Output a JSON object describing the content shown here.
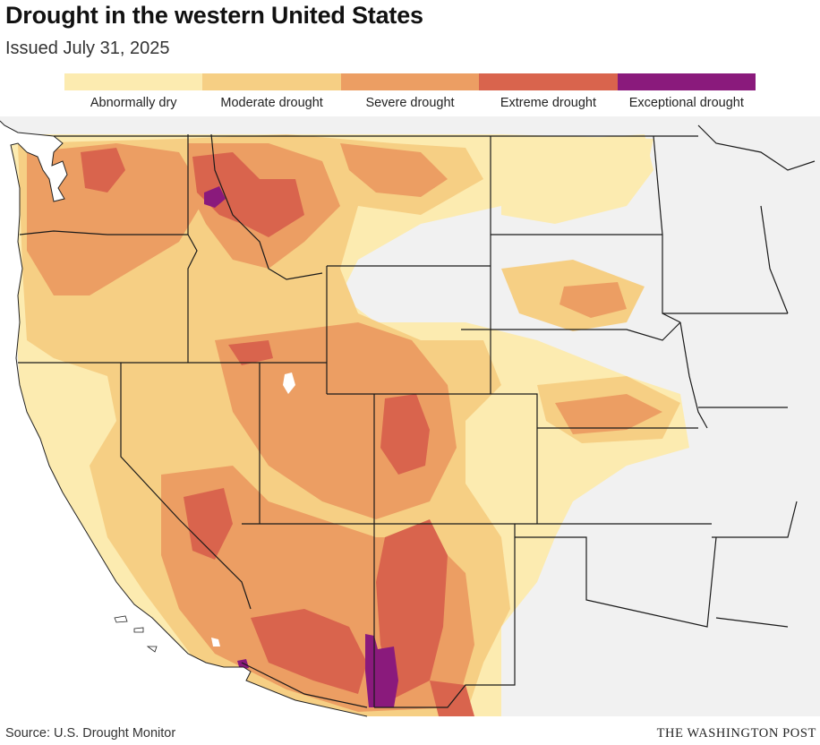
{
  "title": "Drought in the western United States",
  "subtitle": "Issued July 31, 2025",
  "legend": [
    {
      "label": "Abnormally dry",
      "color": "#fcebb0"
    },
    {
      "label": "Moderate drought",
      "color": "#f6cf84"
    },
    {
      "label": "Severe drought",
      "color": "#ec9e63"
    },
    {
      "label": "Extreme drought",
      "color": "#d9644d"
    },
    {
      "label": "Exceptional drought",
      "color": "#8a1a7c"
    }
  ],
  "colors": {
    "none": "#f1f1f1",
    "water": "#ffffff",
    "border": "#222222",
    "state_line": "#1a1a1a"
  },
  "source": "Source: U.S. Drought Monitor",
  "credit": "THE WASHINGTON POST"
}
